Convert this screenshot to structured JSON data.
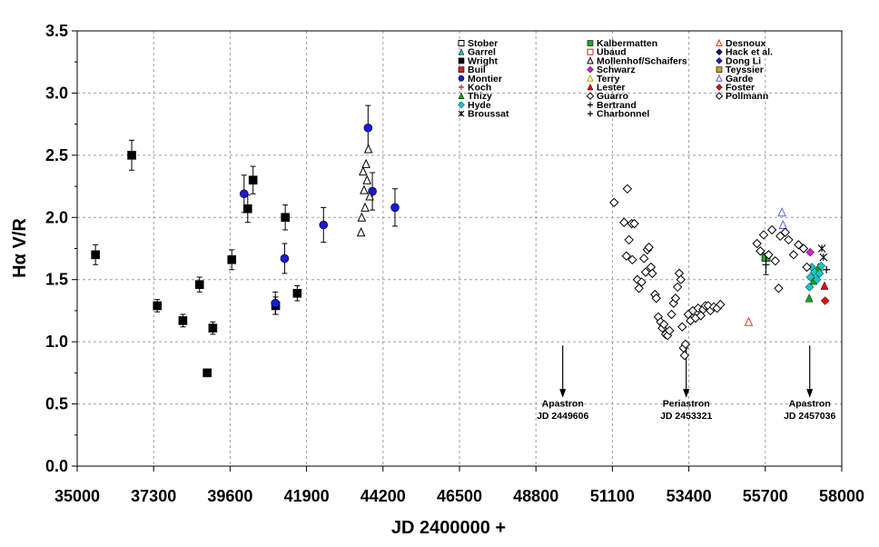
{
  "chart_data": {
    "type": "scatter",
    "xlabel": "JD 2400000 +",
    "ylabel": "Hα V/R",
    "xlim": [
      35000,
      58000
    ],
    "ylim": [
      0.0,
      3.5
    ],
    "xticks": [
      35000,
      37300,
      39600,
      41900,
      44200,
      46500,
      48800,
      51100,
      53400,
      55700,
      58000
    ],
    "yticks": [
      0.0,
      0.5,
      1.0,
      1.5,
      2.0,
      2.5,
      3.0,
      3.5
    ],
    "ytick_labels": [
      "0.0",
      "0.5",
      "1.0",
      "1.5",
      "2.0",
      "2.5",
      "3.0",
      "3.5"
    ],
    "grid": "dashed",
    "legend_position": "top-right",
    "series": [
      {
        "name": "Stober",
        "marker": "square-open",
        "color": "#000000",
        "points": []
      },
      {
        "name": "Garrel",
        "marker": "triangle",
        "color": "#2ab5b5",
        "points": []
      },
      {
        "name": "Wright",
        "marker": "square",
        "color": "#000000",
        "points": [
          {
            "x": 35550,
            "y": 1.7,
            "err": 0.08
          },
          {
            "x": 36640,
            "y": 2.5,
            "err": 0.12
          },
          {
            "x": 37410,
            "y": 1.29,
            "err": 0.05
          },
          {
            "x": 38180,
            "y": 1.17,
            "err": 0.05
          },
          {
            "x": 38680,
            "y": 1.46,
            "err": 0.06
          },
          {
            "x": 38910,
            "y": 0.75,
            "err": 0.03
          },
          {
            "x": 39080,
            "y": 1.11,
            "err": 0.05
          },
          {
            "x": 39650,
            "y": 1.66,
            "err": 0.08
          },
          {
            "x": 40130,
            "y": 2.07,
            "err": 0.11
          },
          {
            "x": 40290,
            "y": 2.3,
            "err": 0.11
          },
          {
            "x": 40970,
            "y": 1.29,
            "err": 0.07
          },
          {
            "x": 41260,
            "y": 2.0,
            "err": 0.1
          },
          {
            "x": 41620,
            "y": 1.39,
            "err": 0.06
          }
        ]
      },
      {
        "name": "Buil",
        "marker": "square",
        "color": "#d42020",
        "points": []
      },
      {
        "name": "Montier",
        "marker": "circle",
        "color": "#1a1ad8",
        "points": [
          {
            "x": 40020,
            "y": 2.19,
            "err": 0.15
          },
          {
            "x": 40960,
            "y": 1.31,
            "err": 0.09
          },
          {
            "x": 41240,
            "y": 1.67,
            "err": 0.12
          },
          {
            "x": 42410,
            "y": 1.94,
            "err": 0.14
          },
          {
            "x": 43750,
            "y": 2.72,
            "err": 0.18
          },
          {
            "x": 43880,
            "y": 2.21,
            "err": 0.15
          },
          {
            "x": 44560,
            "y": 2.08,
            "err": 0.15
          }
        ]
      },
      {
        "name": "Koch",
        "marker": "plus",
        "color": "#d42020",
        "points": []
      },
      {
        "name": "Thizy",
        "marker": "triangle",
        "color": "#10a810",
        "points": [
          {
            "x": 57020,
            "y": 1.35
          },
          {
            "x": 57150,
            "y": 1.49
          },
          {
            "x": 57300,
            "y": 1.6
          }
        ]
      },
      {
        "name": "Hyde",
        "marker": "diamond",
        "color": "#10c8c8",
        "points": [
          {
            "x": 57030,
            "y": 1.44
          },
          {
            "x": 57060,
            "y": 1.52
          },
          {
            "x": 57100,
            "y": 1.6
          },
          {
            "x": 57180,
            "y": 1.56
          },
          {
            "x": 57250,
            "y": 1.5
          },
          {
            "x": 57330,
            "y": 1.55
          },
          {
            "x": 57380,
            "y": 1.61
          }
        ]
      },
      {
        "name": "Broussat",
        "marker": "asterisk",
        "color": "#000000",
        "points": [
          {
            "x": 57400,
            "y": 1.75
          },
          {
            "x": 57450,
            "y": 1.68
          }
        ]
      },
      {
        "name": "Kalbermatten",
        "marker": "square",
        "color": "#1fa81f",
        "points": [
          {
            "x": 55720,
            "y": 1.68
          }
        ]
      },
      {
        "name": "Ubaud",
        "marker": "square-open",
        "color": "#d42020",
        "points": []
      },
      {
        "name": "Mollenhof/Schaifers",
        "marker": "triangle-open",
        "color": "#000000",
        "points": [
          {
            "x": 43540,
            "y": 1.88
          },
          {
            "x": 43560,
            "y": 2.0
          },
          {
            "x": 43600,
            "y": 2.37
          },
          {
            "x": 43630,
            "y": 2.22
          },
          {
            "x": 43660,
            "y": 2.08
          },
          {
            "x": 43690,
            "y": 2.43
          },
          {
            "x": 43720,
            "y": 2.3
          },
          {
            "x": 43760,
            "y": 2.55
          },
          {
            "x": 43800,
            "y": 2.17
          }
        ]
      },
      {
        "name": "Schwarz",
        "marker": "diamond",
        "color": "#d020d0",
        "points": [
          {
            "x": 57050,
            "y": 1.72
          }
        ]
      },
      {
        "name": "Terry",
        "marker": "triangle-open",
        "color": "#c8a800",
        "points": []
      },
      {
        "name": "Lester",
        "marker": "triangle",
        "color": "#e01010",
        "points": [
          {
            "x": 57480,
            "y": 1.45
          }
        ]
      },
      {
        "name": "Guarro",
        "marker": "diamond-open",
        "color": "#000000",
        "points": []
      },
      {
        "name": "Bertrand",
        "marker": "plus",
        "color": "#000000",
        "points": [
          {
            "x": 55720,
            "y": 1.62,
            "err": 0.08
          }
        ]
      },
      {
        "name": "Charbonnel",
        "marker": "plus",
        "color": "#000000",
        "points": [
          {
            "x": 57540,
            "y": 1.58
          }
        ]
      },
      {
        "name": "Desnoux",
        "marker": "triangle-open",
        "color": "#e04020",
        "points": [
          {
            "x": 55200,
            "y": 1.16
          }
        ]
      },
      {
        "name": "Hack et al.",
        "marker": "diamond",
        "color": "#10107a",
        "points": []
      },
      {
        "name": "Dong Li",
        "marker": "diamond",
        "color": "#1a1ad8",
        "points": []
      },
      {
        "name": "Teyssier",
        "marker": "square",
        "color": "#c8a030",
        "points": []
      },
      {
        "name": "Garde",
        "marker": "triangle-open",
        "color": "#6060e0",
        "points": [
          {
            "x": 56200,
            "y": 2.04
          },
          {
            "x": 56230,
            "y": 1.94
          }
        ]
      },
      {
        "name": "Foster",
        "marker": "diamond",
        "color": "#e01010",
        "points": [
          {
            "x": 57500,
            "y": 1.33
          }
        ]
      },
      {
        "name": "Pollmann",
        "marker": "diamond-open",
        "color": "#000000",
        "points": [
          {
            "x": 51150,
            "y": 2.12
          },
          {
            "x": 51550,
            "y": 2.23
          },
          {
            "x": 51450,
            "y": 1.96
          },
          {
            "x": 51520,
            "y": 1.69
          },
          {
            "x": 51600,
            "y": 1.82
          },
          {
            "x": 51680,
            "y": 1.95
          },
          {
            "x": 51700,
            "y": 1.66
          },
          {
            "x": 51760,
            "y": 1.95
          },
          {
            "x": 51850,
            "y": 1.5
          },
          {
            "x": 51900,
            "y": 1.43
          },
          {
            "x": 51980,
            "y": 1.48
          },
          {
            "x": 52050,
            "y": 1.67
          },
          {
            "x": 52100,
            "y": 1.56
          },
          {
            "x": 52150,
            "y": 1.74
          },
          {
            "x": 52200,
            "y": 1.76
          },
          {
            "x": 52260,
            "y": 1.6
          },
          {
            "x": 52300,
            "y": 1.55
          },
          {
            "x": 52380,
            "y": 1.38
          },
          {
            "x": 52420,
            "y": 1.35
          },
          {
            "x": 52480,
            "y": 1.2
          },
          {
            "x": 52550,
            "y": 1.16
          },
          {
            "x": 52600,
            "y": 1.11
          },
          {
            "x": 52650,
            "y": 1.14
          },
          {
            "x": 52700,
            "y": 1.06
          },
          {
            "x": 52760,
            "y": 1.05
          },
          {
            "x": 52820,
            "y": 1.09
          },
          {
            "x": 52880,
            "y": 1.22
          },
          {
            "x": 52940,
            "y": 1.31
          },
          {
            "x": 53000,
            "y": 1.35
          },
          {
            "x": 53060,
            "y": 1.44
          },
          {
            "x": 53110,
            "y": 1.55
          },
          {
            "x": 53160,
            "y": 1.5
          },
          {
            "x": 53200,
            "y": 1.12
          },
          {
            "x": 53240,
            "y": 0.95
          },
          {
            "x": 53270,
            "y": 0.89
          },
          {
            "x": 53300,
            "y": 0.98
          },
          {
            "x": 53380,
            "y": 1.22
          },
          {
            "x": 53450,
            "y": 1.17
          },
          {
            "x": 53520,
            "y": 1.25
          },
          {
            "x": 53600,
            "y": 1.19
          },
          {
            "x": 53680,
            "y": 1.27
          },
          {
            "x": 53760,
            "y": 1.21
          },
          {
            "x": 53830,
            "y": 1.26
          },
          {
            "x": 53900,
            "y": 1.29
          },
          {
            "x": 53980,
            "y": 1.29
          },
          {
            "x": 54050,
            "y": 1.25
          },
          {
            "x": 54150,
            "y": 1.28
          },
          {
            "x": 54250,
            "y": 1.27
          },
          {
            "x": 54350,
            "y": 1.3
          },
          {
            "x": 55450,
            "y": 1.79
          },
          {
            "x": 55550,
            "y": 1.73
          },
          {
            "x": 55650,
            "y": 1.86
          },
          {
            "x": 55800,
            "y": 1.7
          },
          {
            "x": 55900,
            "y": 1.9
          },
          {
            "x": 56000,
            "y": 1.65
          },
          {
            "x": 56100,
            "y": 1.43
          },
          {
            "x": 56150,
            "y": 1.85
          },
          {
            "x": 56300,
            "y": 1.88
          },
          {
            "x": 56400,
            "y": 1.82
          },
          {
            "x": 56550,
            "y": 1.7
          },
          {
            "x": 56700,
            "y": 1.78
          },
          {
            "x": 56850,
            "y": 1.75
          },
          {
            "x": 56950,
            "y": 1.6
          }
        ]
      }
    ],
    "annotations": [
      {
        "label": "Apastron",
        "sublabel": "JD 2449606",
        "x": 49606
      },
      {
        "label": "Periastron",
        "sublabel": "JD 2453321",
        "x": 53321
      },
      {
        "label": "Apastron",
        "sublabel": "JD 2457036",
        "x": 57036
      }
    ]
  }
}
